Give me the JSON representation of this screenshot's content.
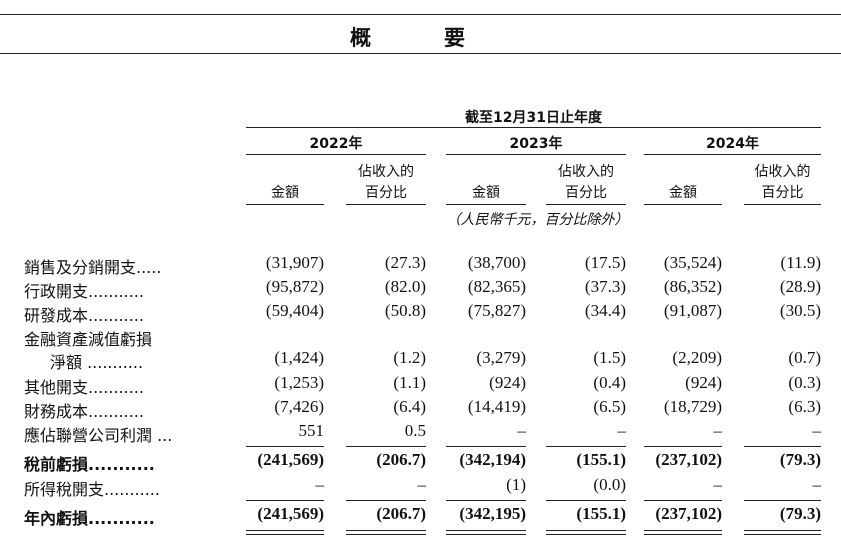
{
  "page_title": "概　要",
  "header": {
    "period": "截至12月31日止年度",
    "years": [
      "2022年",
      "2023年",
      "2024年"
    ],
    "col_amount": "金額",
    "col_pct_line1": "佔收入的",
    "col_pct_line2": "百分比",
    "units": "（人民幣千元，百分比除外）"
  },
  "rows": [
    {
      "label": "銷售及分銷開支.....",
      "values": [
        "(31,907)",
        "(27.3)",
        "(38,700)",
        "(17.5)",
        "(35,524)",
        "(11.9)"
      ]
    },
    {
      "label": "行政開支...........",
      "values": [
        "(95,872)",
        "(82.0)",
        "(82,365)",
        "(37.3)",
        "(86,352)",
        "(28.9)"
      ]
    },
    {
      "label": "研發成本...........",
      "values": [
        "(59,404)",
        "(50.8)",
        "(75,827)",
        "(34.4)",
        "(91,087)",
        "(30.5)"
      ]
    },
    {
      "label": "金融資產減值虧損",
      "values": [
        "",
        "",
        "",
        "",
        "",
        ""
      ]
    },
    {
      "label": "淨額 ...........",
      "values": [
        "(1,424)",
        "(1.2)",
        "(3,279)",
        "(1.5)",
        "(2,209)",
        "(0.7)"
      ]
    },
    {
      "label": "其他開支...........",
      "values": [
        "(1,253)",
        "(1.1)",
        "(924)",
        "(0.4)",
        "(924)",
        "(0.3)"
      ]
    },
    {
      "label": "財務成本...........",
      "values": [
        "(7,426)",
        "(6.4)",
        "(14,419)",
        "(6.5)",
        "(18,729)",
        "(6.3)"
      ]
    },
    {
      "label": "應佔聯營公司利潤 ...",
      "values": [
        "551",
        "0.5",
        "–",
        "–",
        "–",
        "–"
      ]
    },
    {
      "label": "稅前虧損...........",
      "values": [
        "(241,569)",
        "(206.7)",
        "(342,194)",
        "(155.1)",
        "(237,102)",
        "(79.3)"
      ]
    },
    {
      "label": "所得稅開支...........",
      "values": [
        "–",
        "–",
        "(1)",
        "(0.0)",
        "–",
        "–"
      ]
    },
    {
      "label": "年內虧損...........",
      "values": [
        "(241,569)",
        "(206.7)",
        "(342,195)",
        "(155.1)",
        "(237,102)",
        "(79.3)"
      ]
    }
  ]
}
